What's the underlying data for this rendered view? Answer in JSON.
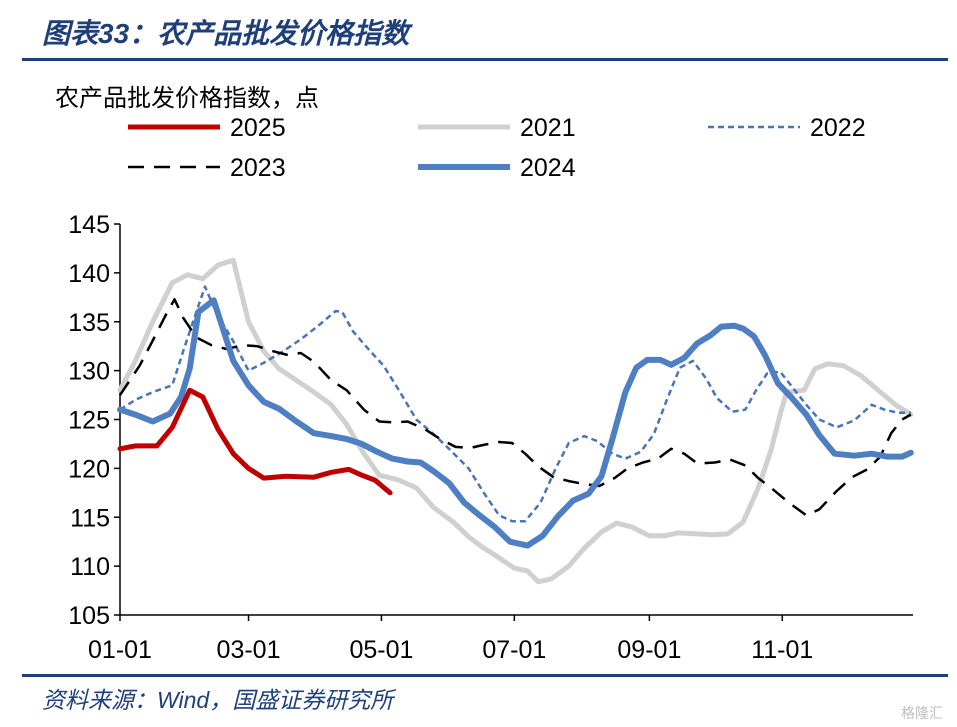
{
  "header": {
    "title": "图表33：农产品批发价格指数",
    "unit_label": "农产品批发价格指数，点"
  },
  "footer": {
    "source": "资料来源：Wind，国盛证券研究所",
    "watermark": "格隆汇"
  },
  "chart_data": {
    "type": "line",
    "title": "农产品批发价格指数",
    "ylabel": "农产品批发价格指数，点",
    "xlabel": "",
    "ylim": [
      105,
      145
    ],
    "yticks": [
      105,
      110,
      115,
      120,
      125,
      130,
      135,
      140,
      145
    ],
    "xlim": [
      1,
      365
    ],
    "xtick_labels": [
      "01-01",
      "03-01",
      "05-01",
      "07-01",
      "09-01",
      "11-01"
    ],
    "xtick_days": [
      1,
      60,
      121,
      182,
      244,
      305
    ],
    "grid": false,
    "legend_position": "top",
    "series": [
      {
        "name": "2025",
        "color": "#c00000",
        "style": "solid",
        "width": 5,
        "points": [
          [
            1,
            122
          ],
          [
            8,
            122.3
          ],
          [
            18,
            122.3
          ],
          [
            25,
            124.2
          ],
          [
            33,
            128
          ],
          [
            39,
            127.3
          ],
          [
            46,
            124
          ],
          [
            53,
            121.5
          ],
          [
            60,
            120
          ],
          [
            67,
            119
          ],
          [
            77,
            119.2
          ],
          [
            90,
            119.1
          ],
          [
            98,
            119.6
          ],
          [
            106,
            119.9
          ],
          [
            112,
            119.3
          ],
          [
            118,
            118.8
          ],
          [
            125,
            117.5
          ]
        ]
      },
      {
        "name": "2021",
        "color": "#d0d0d0",
        "style": "solid",
        "width": 5,
        "points": [
          [
            1,
            128
          ],
          [
            8,
            131
          ],
          [
            16,
            135
          ],
          [
            25,
            139
          ],
          [
            32,
            139.8
          ],
          [
            39,
            139.4
          ],
          [
            46,
            140.8
          ],
          [
            53,
            141.3
          ],
          [
            60,
            135
          ],
          [
            67,
            132
          ],
          [
            74,
            130.2
          ],
          [
            82,
            129
          ],
          [
            90,
            127.8
          ],
          [
            98,
            126.5
          ],
          [
            105,
            124.5
          ],
          [
            113,
            121.5
          ],
          [
            120,
            119.3
          ],
          [
            129,
            118.8
          ],
          [
            137,
            118
          ],
          [
            145,
            116
          ],
          [
            154,
            114.5
          ],
          [
            161,
            113
          ],
          [
            167,
            112
          ],
          [
            174,
            111
          ],
          [
            182,
            109.8
          ],
          [
            188,
            109.5
          ],
          [
            193,
            108.4
          ],
          [
            199,
            108.7
          ],
          [
            207,
            110
          ],
          [
            214,
            111.8
          ],
          [
            222,
            113.5
          ],
          [
            229,
            114.4
          ],
          [
            236,
            114
          ],
          [
            244,
            113.1
          ],
          [
            251,
            113.1
          ],
          [
            257,
            113.4
          ],
          [
            266,
            113.3
          ],
          [
            273,
            113.2
          ],
          [
            280,
            113.3
          ],
          [
            287,
            114.5
          ],
          [
            294,
            118
          ],
          [
            300,
            122
          ],
          [
            304,
            125.5
          ],
          [
            307,
            127.8
          ],
          [
            315,
            128
          ],
          [
            320,
            130.2
          ],
          [
            326,
            130.7
          ],
          [
            333,
            130.5
          ],
          [
            341,
            129.5
          ],
          [
            349,
            128
          ],
          [
            357,
            126.5
          ],
          [
            364,
            125.5
          ]
        ]
      },
      {
        "name": "2022",
        "color": "#4a75b4",
        "style": "shortdash",
        "width": 2.5,
        "points": [
          [
            1,
            126
          ],
          [
            8,
            127
          ],
          [
            16,
            127.8
          ],
          [
            25,
            128.5
          ],
          [
            30,
            132
          ],
          [
            36,
            136
          ],
          [
            40,
            138.6
          ],
          [
            45,
            136
          ],
          [
            53,
            133
          ],
          [
            60,
            130
          ],
          [
            67,
            130.8
          ],
          [
            76,
            132
          ],
          [
            84,
            133.2
          ],
          [
            92,
            134.6
          ],
          [
            100,
            136.1
          ],
          [
            103,
            136
          ],
          [
            108,
            134
          ],
          [
            115,
            132.2
          ],
          [
            122,
            130.5
          ],
          [
            129,
            128
          ],
          [
            137,
            125
          ],
          [
            145,
            123.5
          ],
          [
            152,
            122
          ],
          [
            161,
            120
          ],
          [
            168,
            117.5
          ],
          [
            175,
            115.2
          ],
          [
            181,
            114.6
          ],
          [
            187,
            114.6
          ],
          [
            194,
            116.5
          ],
          [
            201,
            120
          ],
          [
            207,
            122.6
          ],
          [
            214,
            123.3
          ],
          [
            220,
            122.8
          ],
          [
            227,
            121.5
          ],
          [
            233,
            121
          ],
          [
            240,
            121.7
          ],
          [
            246,
            123.5
          ],
          [
            252,
            127
          ],
          [
            258,
            130.3
          ],
          [
            264,
            131
          ],
          [
            270,
            129.2
          ],
          [
            275,
            127.2
          ],
          [
            282,
            125.8
          ],
          [
            288,
            126
          ],
          [
            293,
            128
          ],
          [
            298,
            129.7
          ],
          [
            304,
            129.9
          ],
          [
            310,
            128.2
          ],
          [
            316,
            126.5
          ],
          [
            322,
            125
          ],
          [
            330,
            124.2
          ],
          [
            338,
            124.9
          ],
          [
            346,
            126.5
          ],
          [
            352,
            126
          ],
          [
            358,
            125.7
          ],
          [
            364,
            125.7
          ]
        ]
      },
      {
        "name": "2023",
        "color": "#000000",
        "style": "longdash",
        "width": 2.5,
        "points": [
          [
            1,
            127.5
          ],
          [
            10,
            130.5
          ],
          [
            17,
            133.5
          ],
          [
            22,
            135.7
          ],
          [
            26,
            137.3
          ],
          [
            30,
            135.4
          ],
          [
            36,
            133.4
          ],
          [
            43,
            132.6
          ],
          [
            50,
            132.2
          ],
          [
            57,
            132.6
          ],
          [
            64,
            132.5
          ],
          [
            71,
            132
          ],
          [
            78,
            131.6
          ],
          [
            84,
            131.8
          ],
          [
            90,
            130.9
          ],
          [
            98,
            129
          ],
          [
            105,
            128
          ],
          [
            113,
            126
          ],
          [
            120,
            124.8
          ],
          [
            127,
            124.7
          ],
          [
            133,
            124.8
          ],
          [
            141,
            124
          ],
          [
            148,
            123
          ],
          [
            155,
            122.2
          ],
          [
            162,
            122.1
          ],
          [
            168,
            122.4
          ],
          [
            175,
            122.7
          ],
          [
            181,
            122.6
          ],
          [
            187,
            121.5
          ],
          [
            193,
            120.2
          ],
          [
            200,
            119.1
          ],
          [
            207,
            118.7
          ],
          [
            214,
            118.4
          ],
          [
            221,
            118.2
          ],
          [
            228,
            119
          ],
          [
            234,
            120
          ],
          [
            241,
            120.6
          ],
          [
            248,
            121
          ],
          [
            254,
            122
          ],
          [
            260,
            121.5
          ],
          [
            266,
            120.5
          ],
          [
            274,
            120.6
          ],
          [
            281,
            120.9
          ],
          [
            288,
            120.3
          ],
          [
            294,
            119
          ],
          [
            301,
            117.8
          ],
          [
            308,
            116.5
          ],
          [
            316,
            115.2
          ],
          [
            322,
            115.8
          ],
          [
            330,
            117.7
          ],
          [
            337,
            119.1
          ],
          [
            344,
            119.9
          ],
          [
            350,
            121.2
          ],
          [
            355,
            123.6
          ],
          [
            360,
            125
          ],
          [
            364,
            125.5
          ]
        ]
      },
      {
        "name": "2024",
        "color": "#4e7fc2",
        "style": "solid",
        "width": 6,
        "points": [
          [
            1,
            126
          ],
          [
            8,
            125.5
          ],
          [
            16,
            124.8
          ],
          [
            24,
            125.6
          ],
          [
            29,
            127.3
          ],
          [
            33,
            130.2
          ],
          [
            37,
            136
          ],
          [
            44,
            137.2
          ],
          [
            53,
            131
          ],
          [
            60,
            128.5
          ],
          [
            67,
            126.8
          ],
          [
            74,
            126.1
          ],
          [
            82,
            124.8
          ],
          [
            90,
            123.6
          ],
          [
            98,
            123.3
          ],
          [
            105,
            123
          ],
          [
            112,
            122.5
          ],
          [
            119,
            121.7
          ],
          [
            126,
            121
          ],
          [
            133,
            120.7
          ],
          [
            139,
            120.6
          ],
          [
            145,
            119.7
          ],
          [
            152,
            118.5
          ],
          [
            159,
            116.5
          ],
          [
            166,
            115.2
          ],
          [
            173,
            114
          ],
          [
            180,
            112.5
          ],
          [
            188,
            112.1
          ],
          [
            195,
            113.1
          ],
          [
            202,
            115.1
          ],
          [
            209,
            116.7
          ],
          [
            216,
            117.4
          ],
          [
            222,
            119.2
          ],
          [
            227,
            123
          ],
          [
            233,
            127.8
          ],
          [
            238,
            130.3
          ],
          [
            243,
            131.1
          ],
          [
            249,
            131.1
          ],
          [
            254,
            130.6
          ],
          [
            260,
            131.3
          ],
          [
            266,
            132.8
          ],
          [
            272,
            133.6
          ],
          [
            277,
            134.5
          ],
          [
            283,
            134.6
          ],
          [
            287,
            134.3
          ],
          [
            292,
            133.5
          ],
          [
            297,
            131.6
          ],
          [
            303,
            128.7
          ],
          [
            309,
            127.3
          ],
          [
            316,
            125.5
          ],
          [
            322,
            123.4
          ],
          [
            329,
            121.5
          ],
          [
            338,
            121.3
          ],
          [
            346,
            121.5
          ],
          [
            353,
            121.2
          ],
          [
            360,
            121.2
          ],
          [
            364,
            121.6
          ]
        ]
      }
    ]
  }
}
